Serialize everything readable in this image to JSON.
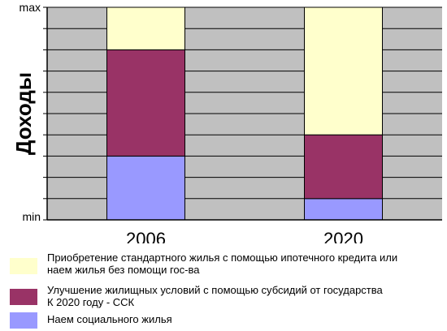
{
  "chart_data": {
    "type": "bar",
    "stacked": true,
    "ylabel": "Доходы",
    "ytick_labels": [
      "min",
      "max"
    ],
    "ylim": [
      0,
      10
    ],
    "grid": true,
    "categories": [
      "2006",
      "2020"
    ],
    "series": [
      {
        "name": "Наем социального жилья",
        "color": "#9999ff",
        "values": [
          3,
          1
        ]
      },
      {
        "name": "Улучшение жилищных условий с помощью субсидий от государства\nК 2020 году - ССК",
        "color": "#993366",
        "values": [
          5,
          3
        ]
      },
      {
        "name": "Приобретение стандартного жилья с помощью ипотечного кредита или\nнаем жилья без помощи гос-ва",
        "color": "#ffffcc",
        "values": [
          2,
          6
        ]
      }
    ],
    "legend_position": "bottom"
  }
}
